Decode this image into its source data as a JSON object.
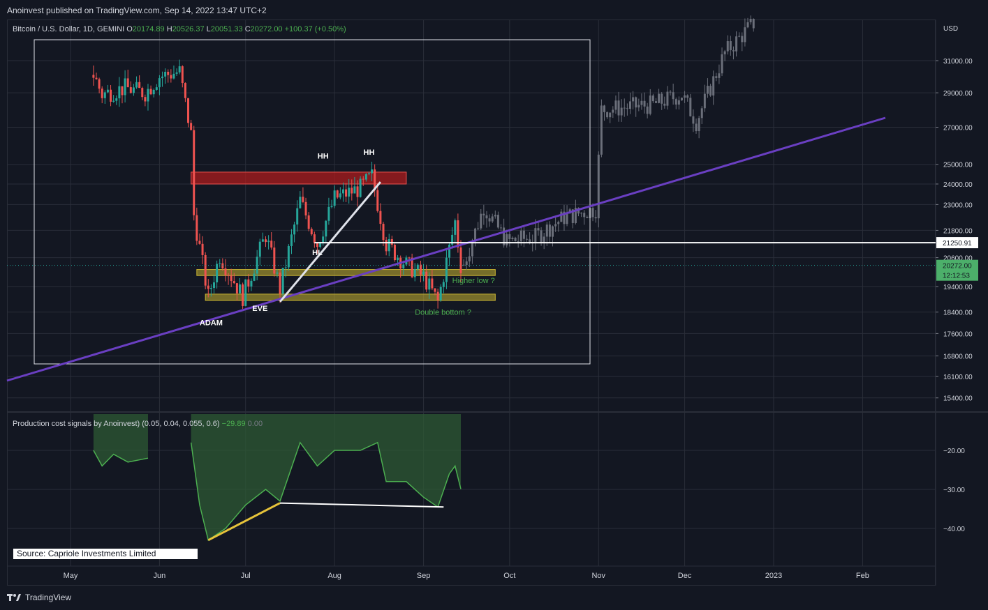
{
  "header": {
    "published": "Anoinvest published on TradingView.com, Sep 14, 2022 13:47 UTC+2"
  },
  "legend": {
    "symbol": "Bitcoin / U.S. Dollar, 1D, GEMINI",
    "o_label": "O",
    "o": "20174.89",
    "h_label": "H",
    "h": "20526.37",
    "l_label": "L",
    "l": "20051.33",
    "c_label": "C",
    "c": "20272.00",
    "change": "+100.37 (+0.50%)"
  },
  "indicator": {
    "name": "Production cost signals by Anoinvest) (0.05, 0.04, 0.055, 0.6)",
    "value1": "−29.89",
    "value2": "0.00"
  },
  "source_label": "Source: Capriole Investments Limited",
  "footer": {
    "brand": "TradingView"
  },
  "colors": {
    "background": "#131722",
    "up": "#26a69a",
    "down": "#ef5350",
    "trendline": "#6a3fc2",
    "zone_red": "#b71c1c",
    "zone_yellow": "#c8b432",
    "indicator": "#4caf50"
  },
  "chart_data": [
    {
      "type": "candlestick",
      "title": "Bitcoin / U.S. Dollar, 1D, GEMINI",
      "y_axis_label": "USD",
      "y_ticks": [
        31000,
        29000,
        27000,
        25000,
        24000,
        23000,
        21800,
        20600,
        19400,
        18400,
        17600,
        16800,
        16100,
        15400
      ],
      "y_tick_labels": [
        "31000.00",
        "29000.00",
        "27000.00",
        "25000.00",
        "24000.00",
        "23000.00",
        "21800.00",
        "20600.00",
        "19400.00",
        "18400.00",
        "17600.00",
        "16800.00",
        "16100.00",
        "15400.00"
      ],
      "x_tick_labels": [
        "May",
        "Jun",
        "Jul",
        "Aug",
        "Sep",
        "Oct",
        "Nov",
        "Dec",
        "2023",
        "Feb"
      ],
      "scale": "log",
      "price_labels": [
        {
          "value": "21250.91",
          "style": "white"
        },
        {
          "value": "20272.00",
          "style": "green"
        },
        {
          "value": "12:12:53",
          "style": "green"
        }
      ],
      "annotations": [
        {
          "text": "HH",
          "color": "#ffffff"
        },
        {
          "text": "HH",
          "color": "#ffffff"
        },
        {
          "text": "HL",
          "color": "#ffffff"
        },
        {
          "text": "EVE",
          "color": "#ffffff"
        },
        {
          "text": "ADAM",
          "color": "#ffffff"
        },
        {
          "text": "Higher low ?",
          "color": "#4caf50"
        },
        {
          "text": "Double bottom ?",
          "color": "#4caf50"
        }
      ],
      "levels": {
        "red_zone": [
          24000,
          24600
        ],
        "upper_yellow": [
          19850,
          20100
        ],
        "lower_yellow": [
          18850,
          19100
        ],
        "horizontal": 21250.91
      },
      "close_path": [
        [
          "2022-05-09",
          30100
        ],
        [
          "2022-05-12",
          28900
        ],
        [
          "2022-05-20",
          29300
        ],
        [
          "2022-05-27",
          29000
        ],
        [
          "2022-06-01",
          30000
        ],
        [
          "2022-06-08",
          30300
        ],
        [
          "2022-06-12",
          26600
        ],
        [
          "2022-06-13",
          22500
        ],
        [
          "2022-06-18",
          19000
        ],
        [
          "2022-06-22",
          20700
        ],
        [
          "2022-06-30",
          19000
        ],
        [
          "2022-07-08",
          21600
        ],
        [
          "2022-07-13",
          19300
        ],
        [
          "2022-07-20",
          23200
        ],
        [
          "2022-07-26",
          21200
        ],
        [
          "2022-08-01",
          23300
        ],
        [
          "2022-08-10",
          23800
        ],
        [
          "2022-08-14",
          24400
        ],
        [
          "2022-08-19",
          21200
        ],
        [
          "2022-08-26",
          20300
        ],
        [
          "2022-09-01",
          19800
        ],
        [
          "2022-09-06",
          18800
        ],
        [
          "2022-09-12",
          22200
        ],
        [
          "2022-09-14",
          20272
        ]
      ],
      "projection_path": [
        [
          "2022-09-15",
          20300
        ],
        [
          "2022-09-22",
          22900
        ],
        [
          "2022-09-30",
          21300
        ],
        [
          "2022-10-10",
          21500
        ],
        [
          "2022-10-20",
          22400
        ],
        [
          "2022-10-31",
          22800
        ],
        [
          "2022-11-02",
          28000
        ],
        [
          "2022-11-20",
          28300
        ],
        [
          "2022-11-30",
          28900
        ],
        [
          "2022-12-05",
          27300
        ],
        [
          "2022-12-15",
          31500
        ],
        [
          "2022-12-25",
          33500
        ]
      ]
    },
    {
      "type": "area",
      "title": "Production cost signals by Anoinvest) (0.05, 0.04, 0.055, 0.6)",
      "y_ticks": [
        -20,
        -30,
        -40
      ],
      "y_tick_labels": [
        "−20.00",
        "−30.00",
        "−40.00"
      ],
      "series": [
        {
          "values": [
            [
              "2022-05-09",
              -20
            ],
            [
              "2022-05-12",
              -24
            ],
            [
              "2022-05-16",
              -21
            ],
            [
              "2022-05-21",
              -23
            ],
            [
              "2022-05-28",
              -22
            ],
            [
              "2022-06-12",
              -18
            ],
            [
              "2022-06-15",
              -34
            ],
            [
              "2022-06-18",
              -43
            ],
            [
              "2022-06-24",
              -40
            ],
            [
              "2022-07-01",
              -34
            ],
            [
              "2022-07-08",
              -30
            ],
            [
              "2022-07-13",
              -33
            ],
            [
              "2022-07-20",
              -18
            ],
            [
              "2022-07-26",
              -24
            ],
            [
              "2022-08-01",
              -20
            ],
            [
              "2022-08-10",
              -20
            ],
            [
              "2022-08-16",
              -18
            ],
            [
              "2022-08-19",
              -28
            ],
            [
              "2022-08-26",
              -28
            ],
            [
              "2022-09-01",
              -32
            ],
            [
              "2022-09-06",
              -34.5
            ],
            [
              "2022-09-10",
              -26
            ],
            [
              "2022-09-12",
              -24
            ],
            [
              "2022-09-14",
              -29.89
            ]
          ]
        }
      ]
    }
  ]
}
